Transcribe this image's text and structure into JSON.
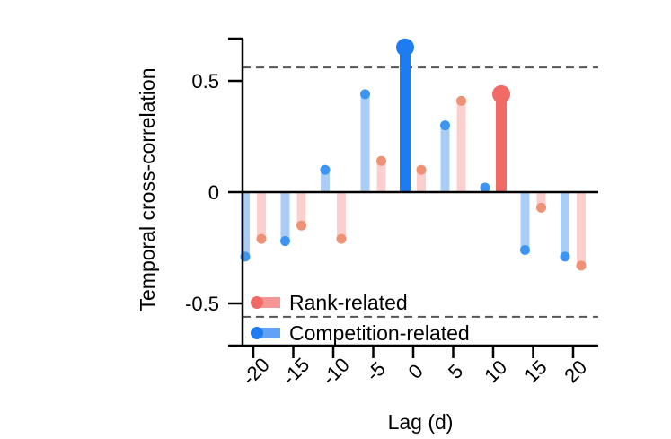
{
  "chart_data": {
    "type": "bar",
    "xlabel": "Lag (d)",
    "ylabel": "Temporal cross-correlation",
    "x": [
      -20,
      -15,
      -10,
      -5,
      0,
      5,
      10,
      15,
      20
    ],
    "x_tick_labels": [
      "-20",
      "-15",
      "-10",
      "-5",
      "0",
      "5",
      "10",
      "15",
      "20"
    ],
    "y_ticks": [
      0.5,
      0,
      -0.5
    ],
    "y_tick_labels": [
      "0.5",
      "0",
      "-0.5"
    ],
    "ylim": [
      -0.68,
      0.68
    ],
    "significance_threshold": [
      0.56,
      -0.56
    ],
    "series": [
      {
        "name": "Competition-related",
        "color": "#1f7bf0",
        "faded_color": "#a9cdf7",
        "values": [
          -0.29,
          -0.22,
          0.1,
          0.44,
          0.65,
          0.3,
          0.02,
          -0.26,
          -0.29
        ],
        "highlight_index": 4
      },
      {
        "name": "Rank-related",
        "color": "#f06a66",
        "faded_color": "#fccfcf",
        "marker_color": "#ee9175",
        "values": [
          -0.21,
          -0.15,
          -0.21,
          0.14,
          0.1,
          0.41,
          0.44,
          -0.07,
          -0.33
        ],
        "highlight_index": 6
      }
    ],
    "legend": "bottom-left",
    "grid": false
  }
}
